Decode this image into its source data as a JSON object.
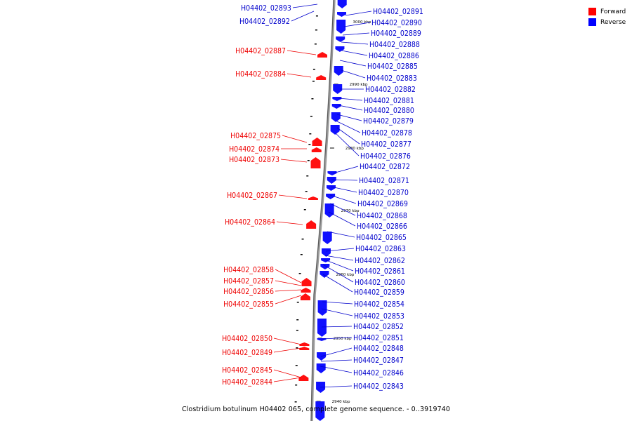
{
  "legend": {
    "forward": {
      "label": "Forward",
      "color": "#ff0000"
    },
    "reverse": {
      "label": "Reverse",
      "color": "#0000ff"
    }
  },
  "caption": "Clostridium botulinum H04402 065, complete genome sequence. - 0..3919740",
  "scale_labels": [
    "3000 kbp",
    "2990 kbp",
    "2980 kbp",
    "2970 kbp",
    "2960 kbp",
    "2950 kbp",
    "2940 kbp"
  ],
  "forward_genes": [
    "H04402_02887",
    "H04402_02884",
    "H04402_02875",
    "H04402_02874",
    "H04402_02873",
    "H04402_02867",
    "H04402_02864",
    "H04402_02858",
    "H04402_02857",
    "H04402_02856",
    "H04402_02855",
    "H04402_02850",
    "H04402_02849",
    "H04402_02845",
    "H04402_02844"
  ],
  "reverse_genes": [
    "H04402_02893",
    "H04402_02892",
    "H04402_02891",
    "H04402_02890",
    "H04402_02889",
    "H04402_02888",
    "H04402_02886",
    "H04402_02885",
    "H04402_02883",
    "H04402_02882",
    "H04402_02881",
    "H04402_02880",
    "H04402_02879",
    "H04402_02878",
    "H04402_02877",
    "H04402_02876",
    "H04402_02872",
    "H04402_02871",
    "H04402_02870",
    "H04402_02869",
    "H04402_02868",
    "H04402_02866",
    "H04402_02865",
    "H04402_02863",
    "H04402_02862",
    "H04402_02861",
    "H04402_02860",
    "H04402_02859",
    "H04402_02854",
    "H04402_02853",
    "H04402_02852",
    "H04402_02851",
    "H04402_02848",
    "H04402_02847",
    "H04402_02846",
    "H04402_02843"
  ]
}
